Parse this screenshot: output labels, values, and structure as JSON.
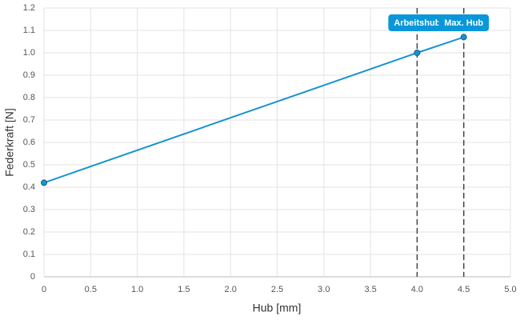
{
  "chart_data": {
    "type": "line",
    "xlabel": "Hub [mm]",
    "ylabel": "Federkraft [N]",
    "x": [
      0,
      4,
      4.5
    ],
    "values": [
      0.42,
      1.0,
      1.07
    ],
    "color": "#1a93d0",
    "xlim": [
      0,
      5
    ],
    "ylim": [
      0,
      1.2
    ],
    "xticks": [
      0,
      0.5,
      {
        "value": 1,
        "label": "1.0"
      },
      1.5,
      {
        "value": 2,
        "label": "2.0"
      },
      2.5,
      {
        "value": 3,
        "label": "3.0"
      },
      3.5,
      {
        "value": 4,
        "label": "4.0"
      },
      4.5,
      {
        "value": 5,
        "label": "5.0"
      }
    ],
    "yticks": [
      0,
      0.1,
      0.2,
      0.3,
      0.4,
      0.5,
      0.6,
      0.7,
      0.8,
      0.9,
      {
        "value": 1,
        "label": "1.0"
      },
      1.1,
      1.2
    ],
    "grid": true,
    "annotations": [
      {
        "x": 4,
        "label": "Arbeitshub"
      },
      {
        "x": 4.5,
        "label": "Max. Hub"
      }
    ],
    "annotation_color": "#0a97d9"
  }
}
